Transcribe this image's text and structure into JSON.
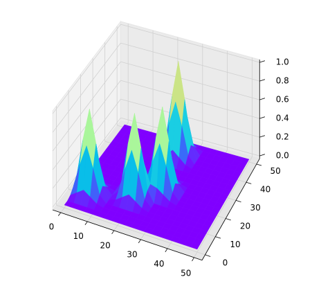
{
  "chart_data": {
    "type": "surface3d",
    "cmap": "rainbow",
    "x": [
      0,
      2.5,
      5,
      7.5,
      10,
      12.5,
      15,
      17.5,
      20,
      22.5,
      25,
      27.5,
      30,
      32.5,
      35,
      37.5,
      40,
      42.5,
      45,
      47.5,
      50
    ],
    "y": [
      0,
      2.5,
      5,
      7.5,
      10,
      12.5,
      15,
      17.5,
      20,
      22.5,
      25,
      27.5,
      30,
      32.5,
      35,
      37.5,
      40,
      42.5,
      45,
      47.5,
      50
    ],
    "z": [
      [
        0,
        0,
        0,
        0,
        0,
        0,
        0,
        0,
        0,
        0,
        0,
        0,
        0,
        0,
        0,
        0,
        0,
        0,
        0,
        0,
        0
      ],
      [
        0,
        0,
        0,
        0,
        0,
        0,
        0,
        0,
        0,
        0,
        0,
        0,
        0,
        0,
        0,
        0,
        0,
        0,
        0,
        0,
        0
      ],
      [
        0.02,
        0.07,
        0.12,
        0.07,
        0.02,
        0,
        0,
        0,
        0,
        0,
        0,
        0,
        0,
        0,
        0,
        0,
        0,
        0,
        0,
        0,
        0
      ],
      [
        0.07,
        0.33,
        0.55,
        0.33,
        0.07,
        0,
        0,
        0,
        0,
        0,
        0,
        0,
        0,
        0,
        0,
        0,
        0,
        0,
        0,
        0,
        0
      ],
      [
        0.12,
        0.55,
        0.9,
        0.55,
        0.12,
        0,
        0.02,
        0.07,
        0.12,
        0.07,
        0.02,
        0,
        0,
        0,
        0,
        0,
        0,
        0,
        0,
        0,
        0
      ],
      [
        0.07,
        0.33,
        0.55,
        0.33,
        0.07,
        0,
        0.07,
        0.33,
        0.55,
        0.33,
        0.07,
        0,
        0,
        0,
        0,
        0,
        0,
        0,
        0,
        0,
        0
      ],
      [
        0.02,
        0.07,
        0.12,
        0.07,
        0.02,
        0,
        0.12,
        0.55,
        0.9,
        0.55,
        0.12,
        0,
        0,
        0,
        0,
        0,
        0,
        0,
        0,
        0,
        0
      ],
      [
        0,
        0,
        0,
        0,
        0,
        0,
        0.07,
        0.33,
        0.55,
        0.35,
        0.14,
        0.12,
        0.07,
        0.02,
        0,
        0,
        0,
        0,
        0,
        0,
        0
      ],
      [
        0,
        0,
        0,
        0,
        0,
        0,
        0.02,
        0.07,
        0.12,
        0.14,
        0.35,
        0.55,
        0.33,
        0.07,
        0,
        0,
        0,
        0,
        0,
        0,
        0
      ],
      [
        0,
        0,
        0,
        0,
        0,
        0,
        0,
        0,
        0,
        0.12,
        0.55,
        0.9,
        0.55,
        0.12,
        0,
        0,
        0,
        0,
        0,
        0,
        0
      ],
      [
        0,
        0,
        0,
        0,
        0,
        0,
        0,
        0,
        0,
        0.07,
        0.33,
        0.55,
        0.33,
        0.07,
        0,
        0,
        0,
        0,
        0,
        0,
        0
      ],
      [
        0,
        0,
        0,
        0,
        0,
        0,
        0,
        0,
        0,
        0.02,
        0.07,
        0.12,
        0.07,
        0.02,
        0,
        0,
        0,
        0,
        0,
        0,
        0
      ],
      [
        0,
        0,
        0,
        0,
        0,
        0,
        0,
        0,
        0,
        0,
        0,
        0,
        0,
        0,
        0,
        0,
        0,
        0,
        0,
        0,
        0
      ],
      [
        0,
        0,
        0,
        0,
        0,
        0,
        0,
        0,
        0,
        0,
        0,
        0,
        0,
        0,
        0,
        0,
        0,
        0,
        0,
        0,
        0
      ],
      [
        0,
        0,
        0,
        0,
        0,
        0,
        0,
        0,
        0,
        0,
        0,
        0,
        0,
        0,
        0,
        0,
        0,
        0,
        0,
        0,
        0
      ],
      [
        0,
        0,
        0,
        0,
        0,
        0,
        0,
        0,
        0.02,
        0.08,
        0.14,
        0.08,
        0.02,
        0,
        0,
        0,
        0,
        0,
        0,
        0,
        0
      ],
      [
        0,
        0,
        0,
        0,
        0,
        0,
        0,
        0,
        0.08,
        0.37,
        0.61,
        0.37,
        0.08,
        0,
        0,
        0,
        0,
        0,
        0,
        0,
        0
      ],
      [
        0,
        0,
        0,
        0,
        0,
        0,
        0,
        0,
        0.14,
        0.61,
        1,
        0.61,
        0.14,
        0,
        0,
        0,
        0,
        0,
        0,
        0,
        0
      ],
      [
        0,
        0,
        0,
        0,
        0,
        0,
        0,
        0,
        0.08,
        0.37,
        0.61,
        0.37,
        0.08,
        0,
        0,
        0,
        0,
        0,
        0,
        0,
        0
      ],
      [
        0,
        0,
        0,
        0,
        0,
        0,
        0,
        0,
        0.02,
        0.08,
        0.14,
        0.08,
        0.02,
        0,
        0,
        0,
        0,
        0,
        0,
        0,
        0
      ],
      [
        0,
        0,
        0,
        0,
        0,
        0,
        0,
        0,
        0,
        0,
        0,
        0,
        0,
        0,
        0,
        0,
        0,
        0,
        0,
        0,
        0
      ]
    ],
    "xlim": [
      0,
      50
    ],
    "ylim": [
      0,
      50
    ],
    "zlim": [
      0,
      1
    ],
    "xticks": [
      0,
      10,
      20,
      30,
      40,
      50
    ],
    "yticks": [
      0,
      10,
      20,
      30,
      40,
      50
    ],
    "zticks": [
      {
        "value": 0,
        "label": "0.0"
      },
      {
        "value": 0.2,
        "label": "0.2"
      },
      {
        "value": 0.4,
        "label": "0.4"
      },
      {
        "value": 0.6,
        "label": "0.6"
      },
      {
        "value": 0.8,
        "label": "0.8"
      },
      {
        "value": 1,
        "label": "1.0"
      }
    ],
    "grid": true
  }
}
